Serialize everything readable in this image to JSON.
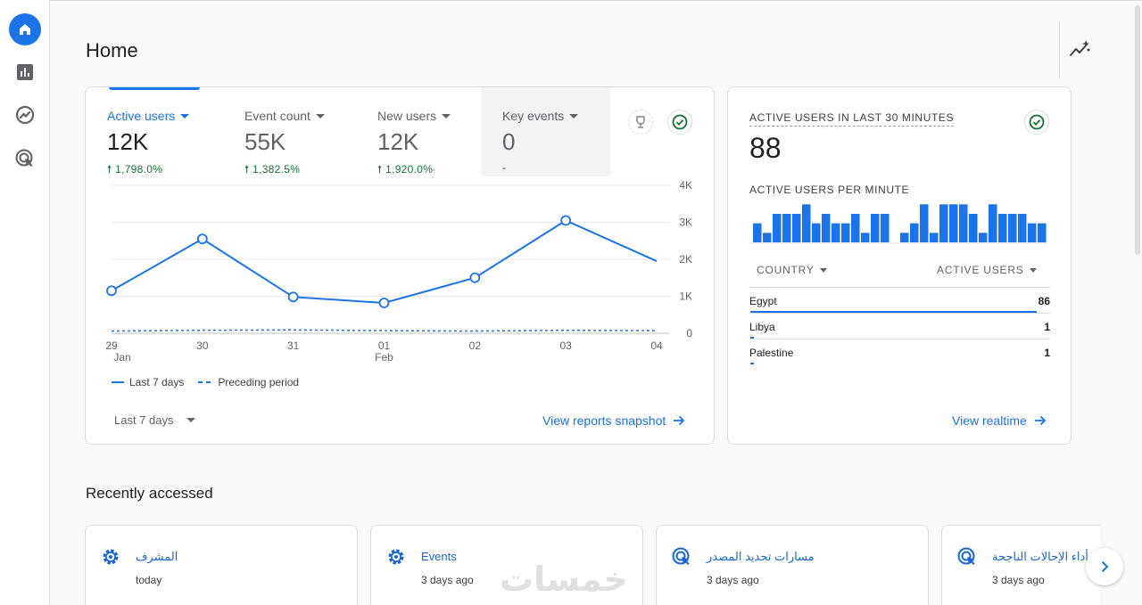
{
  "page": {
    "title": "Home"
  },
  "nav": {
    "items": [
      {
        "icon": "home-icon",
        "active": true
      },
      {
        "icon": "reports-icon"
      },
      {
        "icon": "explore-icon"
      },
      {
        "icon": "advertising-icon"
      }
    ]
  },
  "metrics": [
    {
      "label": "Active users",
      "value": "12K",
      "change": "1,798.0%",
      "active": true
    },
    {
      "label": "Event count",
      "value": "55K",
      "change": "1,382.5%"
    },
    {
      "label": "New users",
      "value": "12K",
      "change": "1,920.0%"
    },
    {
      "label": "Key events",
      "value": "0",
      "change": "-"
    }
  ],
  "chart_data": {
    "type": "line",
    "categories": [
      "29 Jan",
      "30",
      "31",
      "01 Feb",
      "02",
      "03",
      "04"
    ],
    "x_tick_top": [
      "29",
      "30",
      "31",
      "01",
      "02",
      "03",
      "04"
    ],
    "x_tick_bottom": [
      "Jan",
      "",
      "",
      "Feb",
      "",
      "",
      ""
    ],
    "y_ticks": [
      "4K",
      "3K",
      "2K",
      "1K",
      "0"
    ],
    "ylim": [
      0,
      4000
    ],
    "series": [
      {
        "name": "Last 7 days",
        "values": [
          1150,
          2550,
          980,
          820,
          1500,
          3050,
          1950
        ],
        "style": "solid"
      },
      {
        "name": "Preceding period",
        "values": [
          60,
          80,
          90,
          70,
          60,
          80,
          70
        ],
        "style": "dashed"
      }
    ],
    "color": "#1a73e8"
  },
  "chart_footer": {
    "range_label": "Last 7 days",
    "link": "View reports snapshot"
  },
  "realtime": {
    "title": "ACTIVE USERS IN LAST 30 MINUTES",
    "value": "88",
    "per_minute_label": "ACTIVE USERS PER MINUTE",
    "per_minute": [
      2,
      1,
      3,
      3,
      3,
      4,
      2,
      3,
      2,
      2,
      3,
      1,
      3,
      3,
      0,
      1,
      2,
      4,
      1,
      4,
      4,
      4,
      3,
      1,
      4,
      3,
      3,
      3,
      2,
      2
    ],
    "col_country": "COUNTRY",
    "col_users": "ACTIVE USERS",
    "rows": [
      {
        "country": "Egypt",
        "users": "86",
        "share": 0.98
      },
      {
        "country": "Libya",
        "users": "1",
        "share": 0.012
      },
      {
        "country": "Palestine",
        "users": "1",
        "share": 0.012
      }
    ],
    "link": "View realtime"
  },
  "recent": {
    "title": "Recently accessed",
    "items": [
      {
        "name": "المشرف",
        "time": "today",
        "icon": "gear-icon"
      },
      {
        "name": "Events",
        "time": "3 days ago",
        "icon": "gear-icon"
      },
      {
        "name": "مسارات تحديد المصدر",
        "time": "3 days ago",
        "icon": "advertising-icon"
      },
      {
        "name": "أداء الإحالات الناجحة",
        "time": "3 days ago",
        "icon": "advertising-icon"
      }
    ]
  },
  "watermark": "خمسات",
  "colors": {
    "accent": "#1a73e8",
    "positive": "#137333"
  }
}
